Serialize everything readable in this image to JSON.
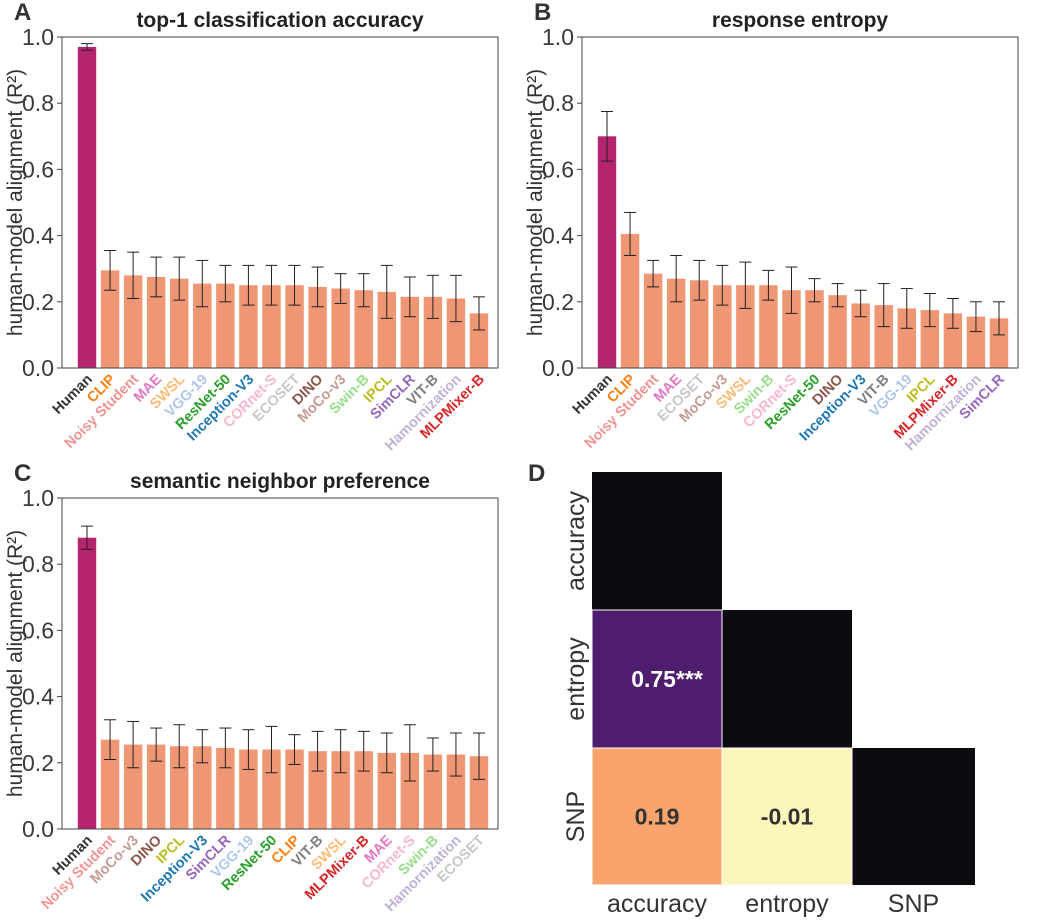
{
  "colors": {
    "human_bar": "#b5246e",
    "model_bar": "#ef9674",
    "label_colors": {
      "Human": "#333333",
      "CLIP": "#ff7f0e",
      "Noisy Student": "#f09593",
      "MAE": "#e377c2",
      "SWSL": "#ffbb78",
      "VGG-19": "#aec7e8",
      "ResNet-50": "#2ca02c",
      "Inception-V3": "#1f77b4",
      "CORnet-S": "#f7b6d2",
      "ECOSET": "#c7c7c7",
      "DINO": "#8c564b",
      "MoCo-v3": "#c49c94",
      "Swin-B": "#98df8a",
      "IPCL": "#bcbd22",
      "SimCLR": "#9467bd",
      "VIT-B": "#7f7f7f",
      "Hamornization": "#c5b0d5",
      "MLPMixer-B": "#d62728"
    }
  },
  "chart_data": [
    {
      "type": "bar",
      "panel": "A",
      "title": "top-1 classification accuracy",
      "ylabel": "human-model alignment (R²)",
      "ylim": [
        0,
        1.0
      ],
      "yticks": [
        "0.0",
        "0.2",
        "0.4",
        "0.6",
        "0.8",
        "1.0"
      ],
      "categories": [
        "Human",
        "CLIP",
        "Noisy Student",
        "MAE",
        "SWSL",
        "VGG-19",
        "ResNet-50",
        "Inception-V3",
        "CORnet-S",
        "ECOSET",
        "DINO",
        "MoCo-v3",
        "Swin-B",
        "IPCL",
        "SimCLR",
        "VIT-B",
        "Hamornization",
        "MLPMixer-B"
      ],
      "values": [
        0.97,
        0.295,
        0.28,
        0.275,
        0.27,
        0.255,
        0.255,
        0.25,
        0.25,
        0.25,
        0.245,
        0.24,
        0.235,
        0.23,
        0.215,
        0.215,
        0.21,
        0.165
      ],
      "errors": [
        0.01,
        0.06,
        0.07,
        0.06,
        0.065,
        0.07,
        0.055,
        0.06,
        0.06,
        0.06,
        0.06,
        0.045,
        0.05,
        0.08,
        0.06,
        0.065,
        0.07,
        0.05
      ]
    },
    {
      "type": "bar",
      "panel": "B",
      "title": "response entropy",
      "ylabel": "human-model alignment (R²)",
      "ylim": [
        0,
        1.0
      ],
      "yticks": [
        "0.0",
        "0.2",
        "0.4",
        "0.6",
        "0.8",
        "1.0"
      ],
      "categories": [
        "Human",
        "CLIP",
        "Noisy Student",
        "MAE",
        "ECOSET",
        "MoCo-v3",
        "SWSL",
        "Swin-B",
        "CORnet-S",
        "ResNet-50",
        "DINO",
        "Inception-V3",
        "VIT-B",
        "VGG-19",
        "IPCL",
        "MLPMixer-B",
        "Hamornization",
        "SimCLR"
      ],
      "values": [
        0.7,
        0.405,
        0.285,
        0.27,
        0.265,
        0.25,
        0.25,
        0.25,
        0.235,
        0.235,
        0.22,
        0.195,
        0.19,
        0.18,
        0.175,
        0.165,
        0.155,
        0.15
      ],
      "errors": [
        0.075,
        0.065,
        0.04,
        0.07,
        0.06,
        0.06,
        0.07,
        0.045,
        0.07,
        0.035,
        0.035,
        0.04,
        0.065,
        0.06,
        0.05,
        0.045,
        0.045,
        0.05
      ]
    },
    {
      "type": "bar",
      "panel": "C",
      "title": "semantic neighbor preference",
      "ylabel": "human-model alignment (R²)",
      "ylim": [
        0,
        1.0
      ],
      "yticks": [
        "0.0",
        "0.2",
        "0.4",
        "0.6",
        "0.8",
        "1.0"
      ],
      "categories": [
        "Human",
        "Noisy Student",
        "MoCo-v3",
        "DINO",
        "IPCL",
        "Inception-V3",
        "SimCLR",
        "VGG-19",
        "ResNet-50",
        "CLIP",
        "VIT-B",
        "SWSL",
        "MLPMixer-B",
        "MAE",
        "CORnet-S",
        "Swin-B",
        "Hamornization",
        "ECOSET"
      ],
      "values": [
        0.88,
        0.27,
        0.255,
        0.255,
        0.25,
        0.25,
        0.245,
        0.24,
        0.24,
        0.24,
        0.235,
        0.235,
        0.235,
        0.23,
        0.23,
        0.225,
        0.225,
        0.22
      ],
      "errors": [
        0.035,
        0.06,
        0.07,
        0.05,
        0.065,
        0.05,
        0.06,
        0.06,
        0.07,
        0.045,
        0.06,
        0.065,
        0.06,
        0.06,
        0.085,
        0.05,
        0.065,
        0.07
      ]
    },
    {
      "type": "heatmap",
      "panel": "D",
      "rows": [
        "accuracy",
        "entropy",
        "SNP"
      ],
      "cols": [
        "accuracy",
        "entropy",
        "SNP"
      ],
      "cells": [
        {
          "row": 1,
          "col": 0,
          "label": "0.75***",
          "color": "#4f1d6d",
          "text_color": "#ffffff"
        },
        {
          "row": 2,
          "col": 0,
          "label": "0.19",
          "color": "#f8a46c",
          "text_color": "#333333"
        },
        {
          "row": 2,
          "col": 1,
          "label": "-0.01",
          "color": "#fcf6bb",
          "text_color": "#333333"
        }
      ],
      "diagonal_color": "#0d0b10"
    }
  ]
}
